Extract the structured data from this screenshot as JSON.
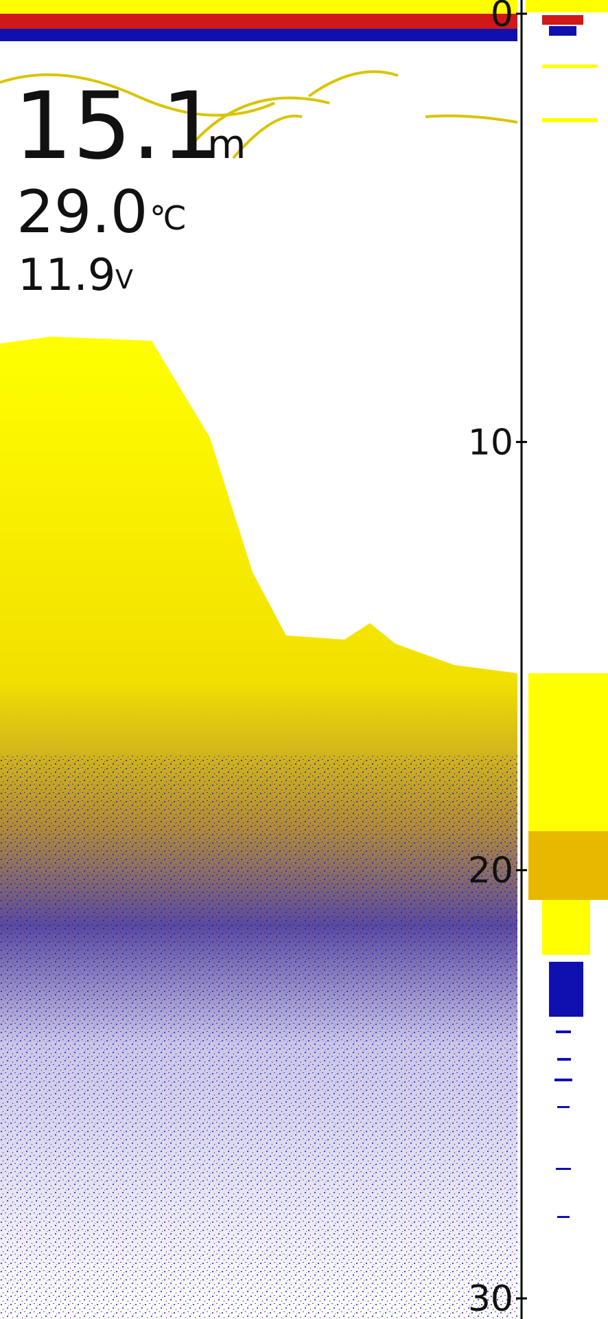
{
  "readouts": {
    "depth": {
      "value": "15.1",
      "unit": "m"
    },
    "temperature": {
      "value": "29.0",
      "unit": "℃"
    },
    "voltage": {
      "value": "11.9",
      "unit": "V"
    }
  },
  "depth_scale": {
    "ticks": [
      0,
      10,
      20,
      30
    ]
  }
}
